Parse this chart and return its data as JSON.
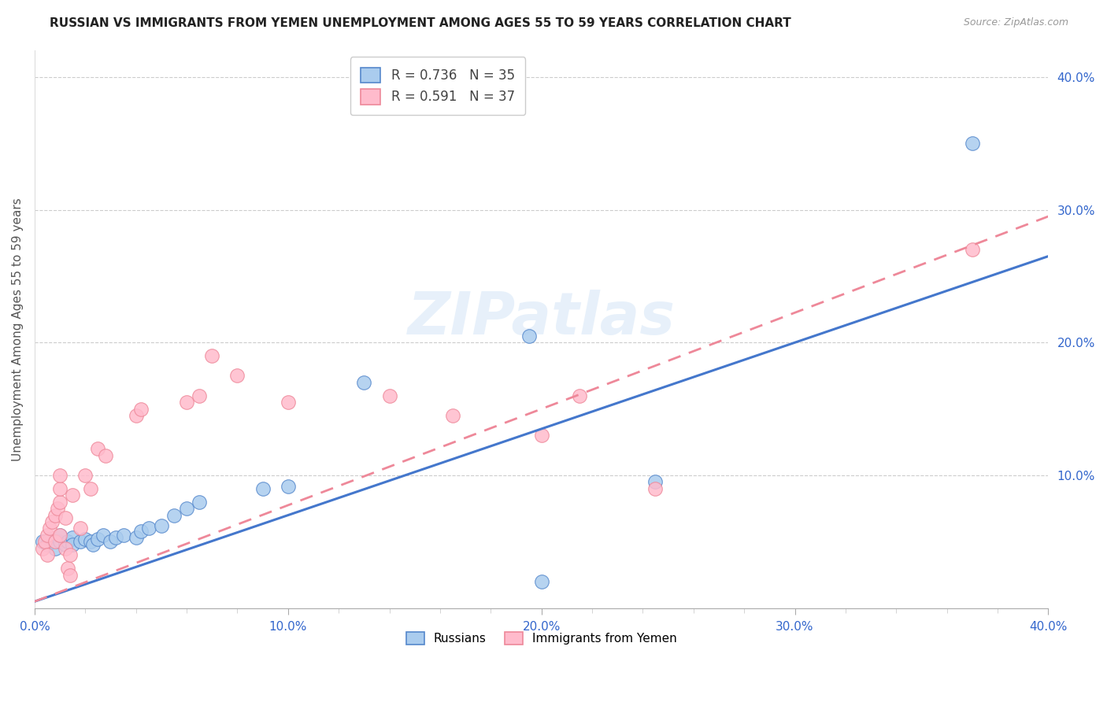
{
  "title": "RUSSIAN VS IMMIGRANTS FROM YEMEN UNEMPLOYMENT AMONG AGES 55 TO 59 YEARS CORRELATION CHART",
  "source": "Source: ZipAtlas.com",
  "ylabel": "Unemployment Among Ages 55 to 59 years",
  "xlim": [
    0.0,
    0.4
  ],
  "ylim": [
    0.0,
    0.42
  ],
  "xtick_labels": [
    "0.0%",
    "",
    "",
    "",
    "",
    "10.0%",
    "",
    "",
    "",
    "",
    "20.0%",
    "",
    "",
    "",
    "",
    "30.0%",
    "",
    "",
    "",
    "",
    "40.0%"
  ],
  "xtick_values": [
    0.0,
    0.02,
    0.04,
    0.06,
    0.08,
    0.1,
    0.12,
    0.14,
    0.16,
    0.18,
    0.2,
    0.22,
    0.24,
    0.26,
    0.28,
    0.3,
    0.32,
    0.34,
    0.36,
    0.38,
    0.4
  ],
  "ytick_labels_right": [
    "10.0%",
    "20.0%",
    "30.0%",
    "40.0%"
  ],
  "ytick_values_right": [
    0.1,
    0.2,
    0.3,
    0.4
  ],
  "grid_values": [
    0.1,
    0.2,
    0.3,
    0.4
  ],
  "watermark": "ZIPatlas",
  "color_blue": "#AACCEE",
  "color_pink": "#FFBBCC",
  "color_blue_edge": "#5588CC",
  "color_pink_edge": "#EE8899",
  "color_blue_line": "#4477CC",
  "color_pink_line": "#EE8899",
  "legend_label_blue": "Russians",
  "legend_label_pink": "Immigrants from Yemen",
  "blue_points": [
    [
      0.003,
      0.05
    ],
    [
      0.005,
      0.048
    ],
    [
      0.006,
      0.052
    ],
    [
      0.008,
      0.05
    ],
    [
      0.008,
      0.045
    ],
    [
      0.01,
      0.05
    ],
    [
      0.01,
      0.055
    ],
    [
      0.012,
      0.048
    ],
    [
      0.013,
      0.05
    ],
    [
      0.015,
      0.053
    ],
    [
      0.015,
      0.048
    ],
    [
      0.018,
      0.05
    ],
    [
      0.02,
      0.052
    ],
    [
      0.022,
      0.05
    ],
    [
      0.023,
      0.048
    ],
    [
      0.025,
      0.052
    ],
    [
      0.027,
      0.055
    ],
    [
      0.03,
      0.05
    ],
    [
      0.032,
      0.053
    ],
    [
      0.035,
      0.055
    ],
    [
      0.04,
      0.053
    ],
    [
      0.042,
      0.058
    ],
    [
      0.045,
      0.06
    ],
    [
      0.05,
      0.062
    ],
    [
      0.055,
      0.07
    ],
    [
      0.06,
      0.075
    ],
    [
      0.065,
      0.08
    ],
    [
      0.09,
      0.09
    ],
    [
      0.1,
      0.092
    ],
    [
      0.13,
      0.17
    ],
    [
      0.195,
      0.205
    ],
    [
      0.2,
      0.02
    ],
    [
      0.245,
      0.095
    ],
    [
      0.37,
      0.35
    ]
  ],
  "pink_points": [
    [
      0.003,
      0.045
    ],
    [
      0.004,
      0.05
    ],
    [
      0.005,
      0.055
    ],
    [
      0.005,
      0.04
    ],
    [
      0.006,
      0.06
    ],
    [
      0.007,
      0.065
    ],
    [
      0.008,
      0.07
    ],
    [
      0.008,
      0.05
    ],
    [
      0.009,
      0.075
    ],
    [
      0.01,
      0.08
    ],
    [
      0.01,
      0.09
    ],
    [
      0.01,
      0.1
    ],
    [
      0.01,
      0.055
    ],
    [
      0.012,
      0.068
    ],
    [
      0.012,
      0.045
    ],
    [
      0.013,
      0.03
    ],
    [
      0.014,
      0.025
    ],
    [
      0.014,
      0.04
    ],
    [
      0.015,
      0.085
    ],
    [
      0.018,
      0.06
    ],
    [
      0.02,
      0.1
    ],
    [
      0.022,
      0.09
    ],
    [
      0.025,
      0.12
    ],
    [
      0.028,
      0.115
    ],
    [
      0.04,
      0.145
    ],
    [
      0.042,
      0.15
    ],
    [
      0.06,
      0.155
    ],
    [
      0.065,
      0.16
    ],
    [
      0.07,
      0.19
    ],
    [
      0.08,
      0.175
    ],
    [
      0.1,
      0.155
    ],
    [
      0.14,
      0.16
    ],
    [
      0.165,
      0.145
    ],
    [
      0.2,
      0.13
    ],
    [
      0.215,
      0.16
    ],
    [
      0.245,
      0.09
    ],
    [
      0.37,
      0.27
    ]
  ],
  "blue_line_x": [
    0.0,
    0.4
  ],
  "blue_line_y": [
    0.005,
    0.265
  ],
  "pink_line_x": [
    0.0,
    0.4
  ],
  "pink_line_y": [
    0.005,
    0.295
  ]
}
